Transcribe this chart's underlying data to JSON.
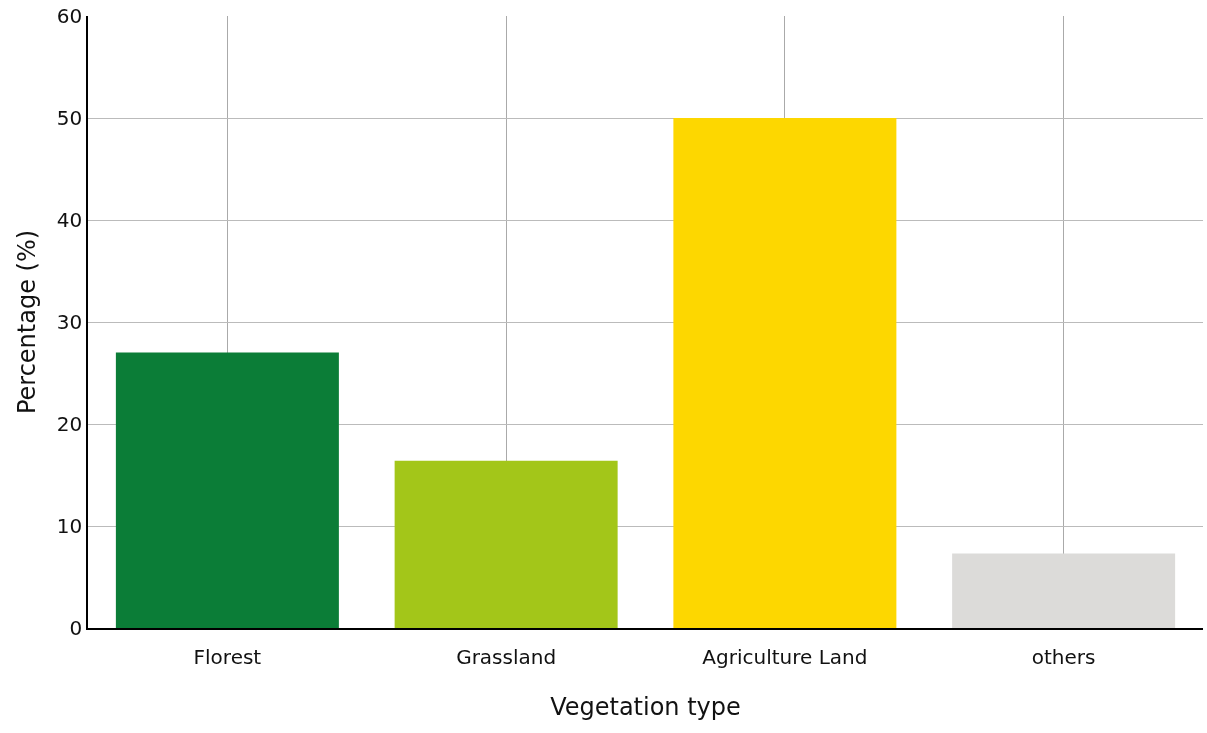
{
  "chart_data": {
    "type": "bar",
    "xlabel": "Vegetation type",
    "ylabel": "Percentage (%)",
    "categories": [
      "Florest",
      "Grassland",
      "Agriculture Land",
      "others"
    ],
    "values": [
      27,
      16.4,
      50,
      7.3
    ],
    "colors": [
      "#0b7d37",
      "#a3c619",
      "#fdd700",
      "#dcdbd9"
    ],
    "ylim": [
      0,
      60
    ],
    "yticks": [
      0,
      10,
      20,
      30,
      40,
      50,
      60
    ],
    "grid": true
  }
}
